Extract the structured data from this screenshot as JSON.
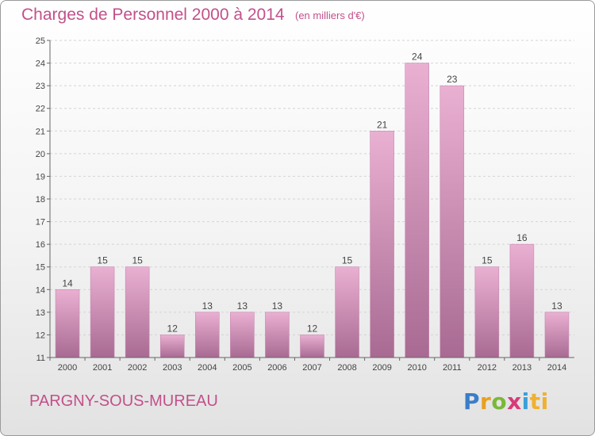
{
  "header": {
    "title": "Charges de Personnel 2000 à 2014",
    "subtitle": "(en milliers d'€)"
  },
  "footer": {
    "commune": "PARGNY-SOUS-MUREAU",
    "logo_text": "Proxiti"
  },
  "colors": {
    "accent": "#c2508a",
    "bar_light": "#eab0d2",
    "bar_dark": "#a86a92",
    "axis": "#666666"
  },
  "chart_data": {
    "type": "bar",
    "title": "Charges de Personnel 2000 à 2014",
    "subtitle": "(en milliers d'€)",
    "xlabel": "",
    "ylabel": "",
    "categories": [
      "2000",
      "2001",
      "2002",
      "2003",
      "2004",
      "2005",
      "2006",
      "2007",
      "2008",
      "2009",
      "2010",
      "2011",
      "2012",
      "2013",
      "2014"
    ],
    "values": [
      14,
      15,
      15,
      12,
      13,
      13,
      13,
      12,
      15,
      21,
      24,
      23,
      15,
      16,
      13
    ],
    "ylim": [
      11,
      25
    ],
    "yticks": [
      11,
      12,
      13,
      14,
      15,
      16,
      17,
      18,
      19,
      20,
      21,
      22,
      23,
      24,
      25
    ],
    "grid": true,
    "legend": "none"
  }
}
